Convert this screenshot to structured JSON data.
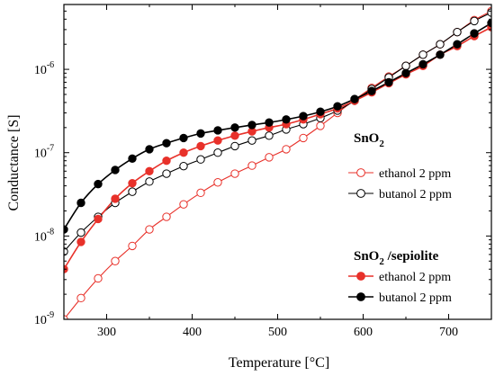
{
  "chart_data": {
    "type": "line",
    "title": "",
    "xlabel": "Temperature [°C]",
    "ylabel": "Conductance [S]",
    "xlim": [
      250,
      750
    ],
    "ylim": [
      1e-09,
      6e-06
    ],
    "yscale": "log",
    "x_ticks": [
      300,
      400,
      500,
      600,
      700
    ],
    "x_tick_labels": [
      "300",
      "400",
      "500",
      "600",
      "700"
    ],
    "y_ticks": [
      1e-09,
      1e-08,
      1e-07,
      1e-06
    ],
    "y_tick_labels": [
      {
        "base": "10",
        "exp": "-9"
      },
      {
        "base": "10",
        "exp": "-8"
      },
      {
        "base": "10",
        "exp": "-7"
      },
      {
        "base": "10",
        "exp": "-6"
      }
    ],
    "grid": false,
    "legend": {
      "groups": [
        {
          "heading": {
            "main": "SnO",
            "sub": "2",
            "suffix": ""
          },
          "entries": [
            {
              "series": 0,
              "label": "ethanol 2 ppm"
            },
            {
              "series": 1,
              "label": "butanol 2 ppm"
            }
          ]
        },
        {
          "heading": {
            "main": "SnO",
            "sub": "2",
            "suffix": " /sepiolite"
          },
          "entries": [
            {
              "series": 2,
              "label": "ethanol 2 ppm"
            },
            {
              "series": 3,
              "label": "butanol 2 ppm"
            }
          ]
        }
      ]
    },
    "series": [
      {
        "name": "ethanol 2 ppm",
        "group": "SnO2",
        "color": "#e8312a",
        "marker": "open",
        "x": [
          250,
          270,
          290,
          310,
          330,
          350,
          370,
          390,
          410,
          430,
          450,
          470,
          490,
          510,
          530,
          550,
          570,
          590,
          610,
          630,
          650,
          670,
          690,
          710,
          730,
          750
        ],
        "y": [
          1e-09,
          1.8e-09,
          3.1e-09,
          5e-09,
          7.6e-09,
          1.2e-08,
          1.7e-08,
          2.4e-08,
          3.3e-08,
          4.4e-08,
          5.6e-08,
          7e-08,
          8.8e-08,
          1.1e-07,
          1.5e-07,
          2.1e-07,
          3e-07,
          4.3e-07,
          6e-07,
          8.2e-07,
          1.1e-06,
          1.5e-06,
          2e-06,
          2.8e-06,
          3.9e-06,
          5e-06
        ]
      },
      {
        "name": "butanol 2 ppm",
        "group": "SnO2",
        "color": "#000000",
        "marker": "open",
        "x": [
          250,
          270,
          290,
          310,
          330,
          350,
          370,
          390,
          410,
          430,
          450,
          470,
          490,
          510,
          530,
          550,
          570,
          590,
          610,
          630,
          650,
          670,
          690,
          710,
          730,
          750
        ],
        "y": [
          6.5e-09,
          1.1e-08,
          1.7e-08,
          2.5e-08,
          3.4e-08,
          4.5e-08,
          5.6e-08,
          6.9e-08,
          8.3e-08,
          1e-07,
          1.2e-07,
          1.4e-07,
          1.6e-07,
          1.9e-07,
          2.2e-07,
          2.6e-07,
          3.2e-07,
          4.2e-07,
          5.8e-07,
          8e-07,
          1.1e-06,
          1.5e-06,
          2e-06,
          2.8e-06,
          3.8e-06,
          4.8e-06
        ]
      },
      {
        "name": "ethanol 2 ppm",
        "group": "SnO2 /sepiolite",
        "color": "#e8312a",
        "marker": "filled",
        "x": [
          250,
          270,
          290,
          310,
          330,
          350,
          370,
          390,
          410,
          430,
          450,
          470,
          490,
          510,
          530,
          550,
          570,
          590,
          610,
          630,
          650,
          670,
          690,
          710,
          730,
          750
        ],
        "y": [
          4e-09,
          8.5e-09,
          1.6e-08,
          2.8e-08,
          4.3e-08,
          6e-08,
          8e-08,
          1e-07,
          1.2e-07,
          1.4e-07,
          1.6e-07,
          1.8e-07,
          2e-07,
          2.2e-07,
          2.5e-07,
          2.9e-07,
          3.4e-07,
          4.2e-07,
          5.3e-07,
          6.8e-07,
          8.7e-07,
          1.1e-06,
          1.5e-06,
          1.9e-06,
          2.5e-06,
          3.2e-06
        ]
      },
      {
        "name": "butanol 2 ppm",
        "group": "SnO2 /sepiolite",
        "color": "#000000",
        "marker": "filled",
        "x": [
          250,
          270,
          290,
          310,
          330,
          350,
          370,
          390,
          410,
          430,
          450,
          470,
          490,
          510,
          530,
          550,
          570,
          590,
          610,
          630,
          650,
          670,
          690,
          710,
          730,
          750
        ],
        "y": [
          1.2e-08,
          2.5e-08,
          4.2e-08,
          6.2e-08,
          8.5e-08,
          1.1e-07,
          1.3e-07,
          1.5e-07,
          1.7e-07,
          1.85e-07,
          2e-07,
          2.15e-07,
          2.3e-07,
          2.5e-07,
          2.75e-07,
          3.1e-07,
          3.6e-07,
          4.4e-07,
          5.5e-07,
          7e-07,
          9e-07,
          1.15e-06,
          1.5e-06,
          2e-06,
          2.7e-06,
          3.6e-06
        ]
      }
    ]
  }
}
